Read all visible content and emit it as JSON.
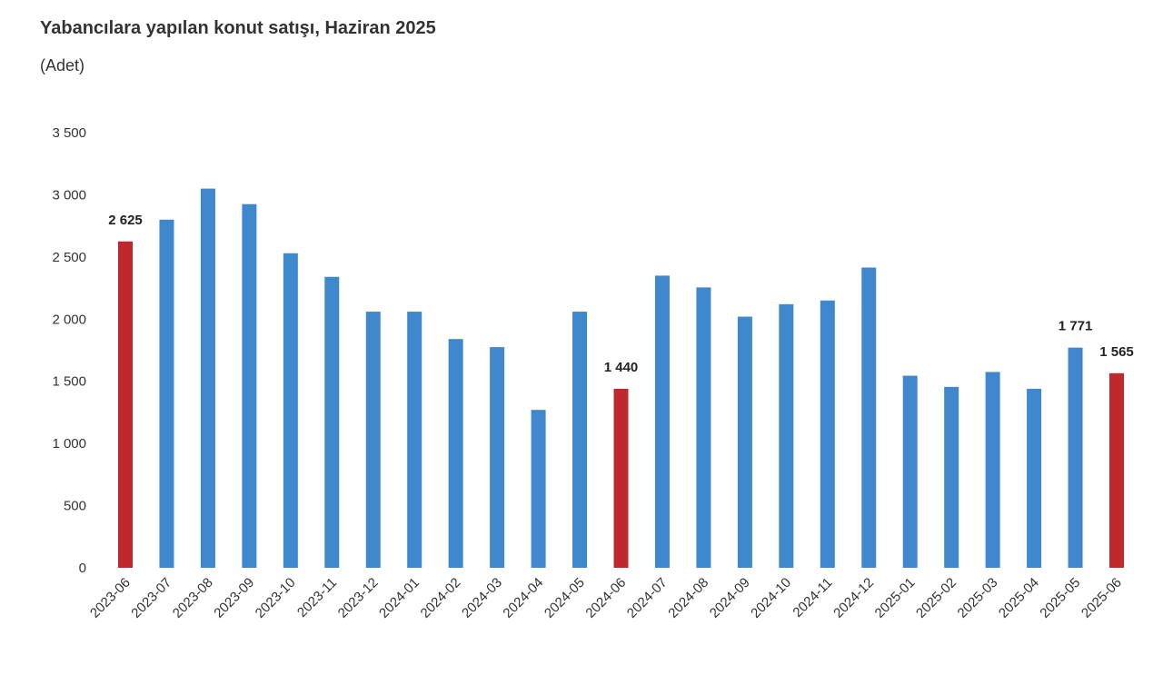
{
  "chart_data": {
    "type": "bar",
    "title": "Yabancılara yapılan konut satışı, Haziran 2025",
    "subtitle": "(Adet)",
    "categories": [
      "2023-06",
      "2023-07",
      "2023-08",
      "2023-09",
      "2023-10",
      "2023-11",
      "2023-12",
      "2024-01",
      "2024-02",
      "2024-03",
      "2024-04",
      "2024-05",
      "2024-06",
      "2024-07",
      "2024-08",
      "2024-09",
      "2024-10",
      "2024-11",
      "2024-12",
      "2025-01",
      "2025-02",
      "2025-03",
      "2025-04",
      "2025-05",
      "2025-06"
    ],
    "values": [
      2625,
      2800,
      3050,
      2925,
      2530,
      2340,
      2060,
      2060,
      1840,
      1775,
      1270,
      2060,
      1440,
      2350,
      2255,
      2020,
      2120,
      2150,
      2415,
      1545,
      1455,
      1575,
      1440,
      1771,
      1565
    ],
    "highlighted": [
      "2023-06",
      "2024-06",
      "2025-06"
    ],
    "data_labels": [
      {
        "category": "2023-06",
        "text": "2 625"
      },
      {
        "category": "2024-06",
        "text": "1 440"
      },
      {
        "category": "2025-05",
        "text": "1 771"
      },
      {
        "category": "2025-06",
        "text": "1 565"
      }
    ],
    "ylim": [
      0,
      3500
    ],
    "yticks": [
      0,
      500,
      1000,
      1500,
      2000,
      2500,
      3000,
      3500
    ],
    "ytick_labels": [
      "0",
      "500",
      "1 000",
      "1 500",
      "2 000",
      "2 500",
      "3 000",
      "3 500"
    ],
    "xlabel": "",
    "ylabel": "",
    "grid": false,
    "colors": {
      "default": "#3f88cd",
      "highlight": "#c0282d"
    }
  }
}
